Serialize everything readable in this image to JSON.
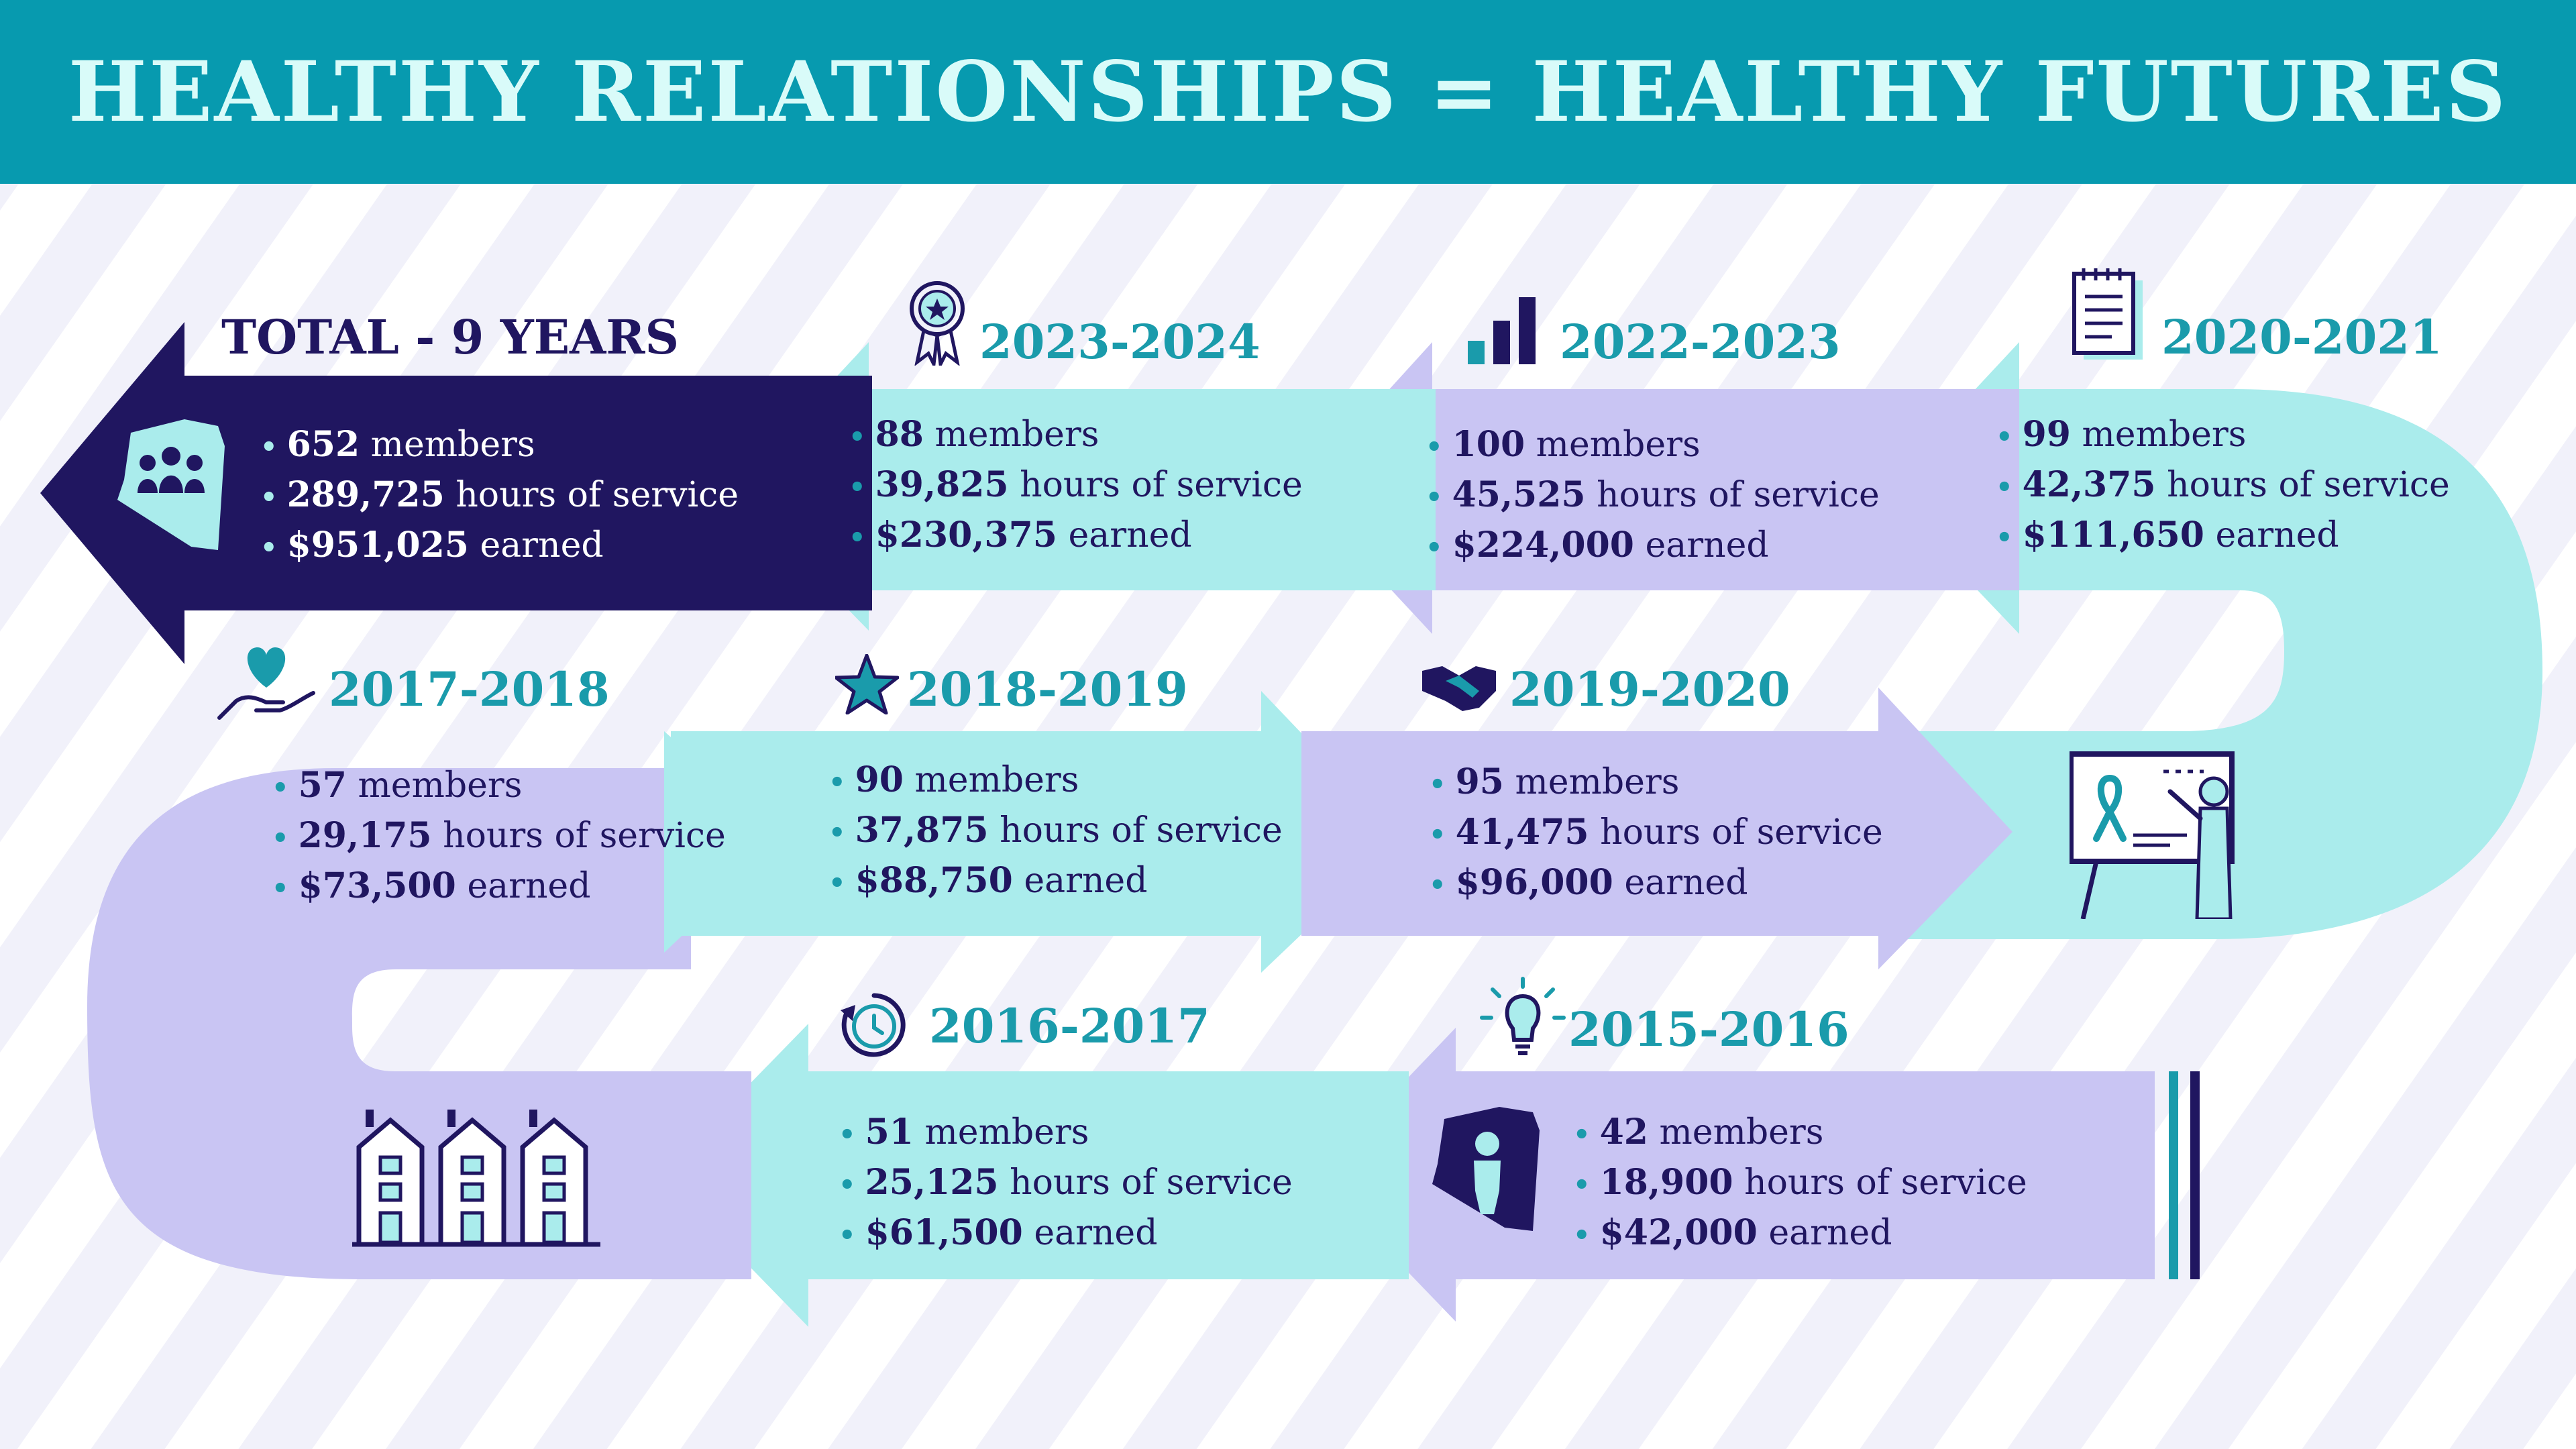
{
  "title": "HEALTHY RELATIONSHIPS = HEALTHY FUTURES",
  "colors": {
    "header_bg": "#079aaf",
    "title_text": "#d9fbf9",
    "navy": "#201660",
    "teal": "#1a9bab",
    "aqua_band": "#aaecec",
    "lavender_band": "#c9c5f3",
    "background": "#f1f1fa"
  },
  "timeline": [
    {
      "period": "2015-2016",
      "icon": "lightbulb-icon",
      "members_value": "42",
      "members_unit": "members",
      "hours_value": "18,900",
      "hours_unit": "hours of service",
      "earned_value": "$42,000",
      "earned_unit": "earned"
    },
    {
      "period": "2016-2017",
      "icon": "clock-icon",
      "members_value": "51",
      "members_unit": "members",
      "hours_value": "25,125",
      "hours_unit": "hours of service",
      "earned_value": "$61,500",
      "earned_unit": "earned"
    },
    {
      "period": "2017-2018",
      "icon": "heart-hand-icon",
      "members_value": "57",
      "members_unit": "members",
      "hours_value": "29,175",
      "hours_unit": "hours of service",
      "earned_value": "$73,500",
      "earned_unit": "earned"
    },
    {
      "period": "2018-2019",
      "icon": "star-icon",
      "members_value": "90",
      "members_unit": "members",
      "hours_value": "37,875",
      "hours_unit": "hours of service",
      "earned_value": "$88,750",
      "earned_unit": "earned"
    },
    {
      "period": "2019-2020",
      "icon": "handshake-icon",
      "members_value": "95",
      "members_unit": "members",
      "hours_value": "41,475",
      "hours_unit": "hours of service",
      "earned_value": "$96,000",
      "earned_unit": "earned"
    },
    {
      "period": "2020-2021",
      "icon": "notepad-icon",
      "members_value": "99",
      "members_unit": "members",
      "hours_value": "42,375",
      "hours_unit": "hours of service",
      "earned_value": "$111,650",
      "earned_unit": "earned"
    },
    {
      "period": "2022-2023",
      "icon": "bar-chart-icon",
      "members_value": "100",
      "members_unit": "members",
      "hours_value": "45,525",
      "hours_unit": "hours of service",
      "earned_value": "$224,000",
      "earned_unit": "earned"
    },
    {
      "period": "2023-2024",
      "icon": "award-ribbon-icon",
      "members_value": "88",
      "members_unit": "members",
      "hours_value": "39,825",
      "hours_unit": "hours of service",
      "earned_value": "$230,375",
      "earned_unit": "earned"
    }
  ],
  "total": {
    "label": "TOTAL - 9 YEARS",
    "icon": "arizona-group-icon",
    "members_value": "652",
    "members_unit": "members",
    "hours_value": "289,725",
    "hours_unit": "hours of service",
    "earned_value": "$951,025",
    "earned_unit": "earned"
  },
  "decorations": {
    "start_icon": "arizona-person-icon",
    "buildings_icon": "apartment-buildings-icon",
    "presentation_icon": "presenter-ribbon-icon"
  }
}
